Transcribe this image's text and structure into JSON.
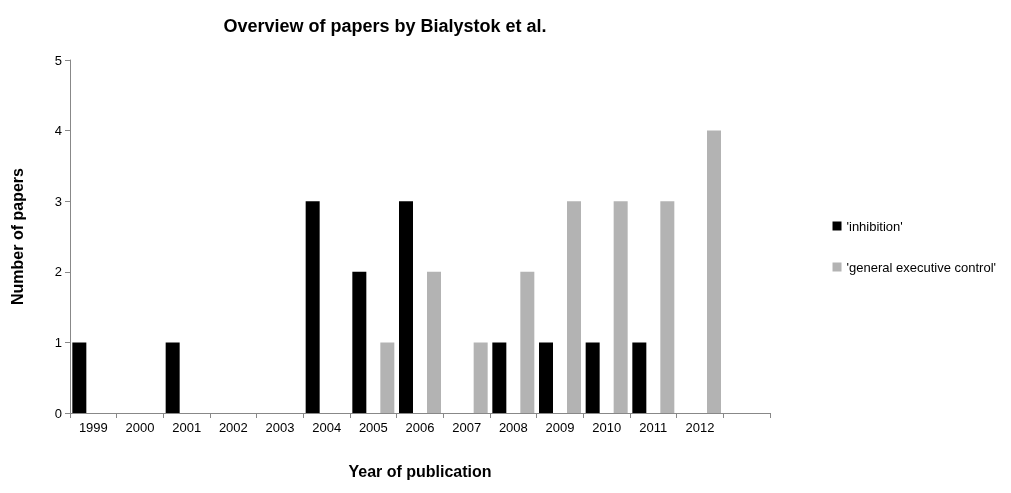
{
  "chart_data": {
    "type": "bar",
    "title": "Overview of papers by Bialystok et al.",
    "xlabel": "Year of publication",
    "ylabel": "Number of papers",
    "categories": [
      "1999",
      "2000",
      "2001",
      "2002",
      "2003",
      "2004",
      "2005",
      "2006",
      "2007",
      "2008",
      "2009",
      "2010",
      "2011",
      "2012",
      null
    ],
    "series": [
      {
        "name": "'inhibition'",
        "color": "#000000",
        "values": [
          1,
          0,
          1,
          0,
          0,
          3,
          2,
          3,
          0,
          1,
          1,
          1,
          1,
          0,
          null
        ]
      },
      {
        "name": "'general executive control'",
        "color": "#b3b3b3",
        "values": [
          0,
          0,
          0,
          0,
          0,
          0,
          1,
          2,
          1,
          2,
          3,
          3,
          3,
          4,
          null
        ]
      }
    ],
    "ylim": [
      0,
      5
    ],
    "yticks": [
      0,
      1,
      2,
      3,
      4,
      5
    ],
    "grid": false,
    "legend": "right"
  }
}
